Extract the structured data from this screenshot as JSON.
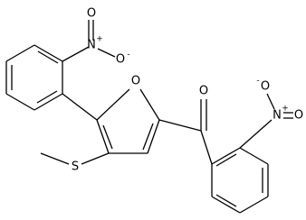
{
  "atoms": [
    {
      "label": "N",
      "charge": "+"
    },
    {
      "label": "O"
    },
    {
      "label": "O",
      "charge": "-"
    },
    {
      "label": "O"
    },
    {
      "label": "S"
    },
    {
      "label": "O"
    },
    {
      "label": "O",
      "charge": "-"
    },
    {
      "label": "N",
      "charge": "+"
    },
    {
      "label": "O"
    }
  ]
}
